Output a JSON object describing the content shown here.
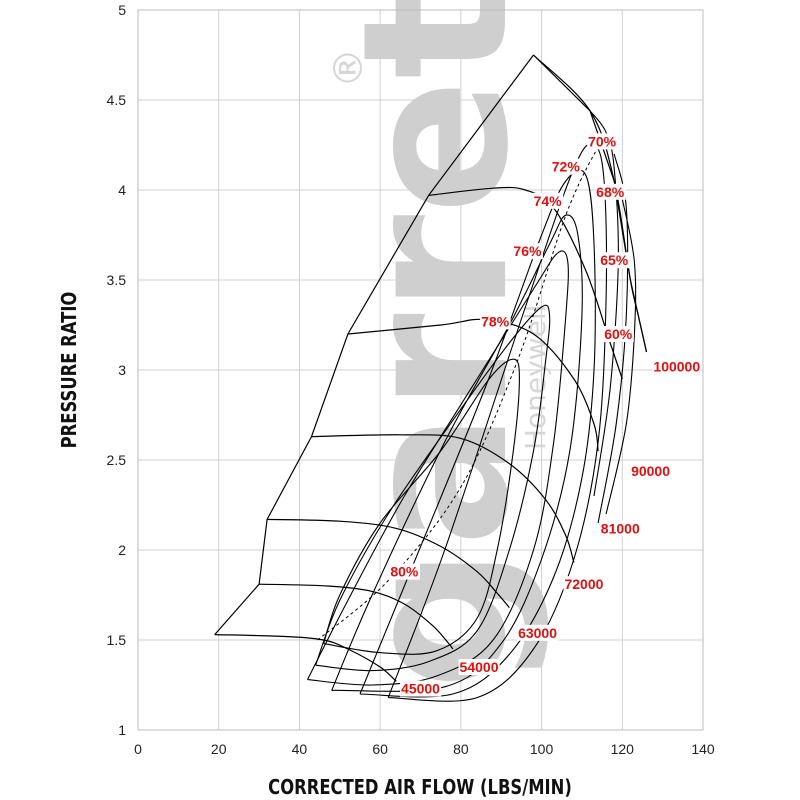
{
  "chart_data": {
    "type": "compressor_map",
    "xlabel": "CORRECTED AIR FLOW (LBS/MIN)",
    "ylabel": "PRESSURE RATIO",
    "xlim": [
      0,
      140
    ],
    "ylim": [
      1,
      5
    ],
    "xticks": [
      0,
      20,
      40,
      60,
      80,
      100,
      120,
      140
    ],
    "yticks": [
      1,
      1.5,
      2,
      2.5,
      3,
      3.5,
      4,
      4.5,
      5
    ],
    "grid": true,
    "watermark": {
      "text": "garrett",
      "registered": "®",
      "subtext": "Honeywell"
    },
    "surge_line": [
      [
        19,
        1.53
      ],
      [
        30,
        1.81
      ],
      [
        32,
        2.17
      ],
      [
        43,
        2.63
      ],
      [
        52,
        3.2
      ],
      [
        72,
        3.97
      ],
      [
        98,
        4.75
      ]
    ],
    "choke_line": [
      [
        98,
        4.75
      ],
      [
        112,
        4.44
      ],
      [
        118,
        4.05
      ],
      [
        122,
        3.5
      ],
      [
        124,
        3.3
      ],
      [
        126,
        3.1
      ]
    ],
    "speed_lines": [
      {
        "name": "45000",
        "points": [
          [
            19,
            1.53
          ],
          [
            36,
            1.52
          ],
          [
            46,
            1.5
          ],
          [
            52,
            1.45
          ],
          [
            60,
            1.35
          ],
          [
            64,
            1.27
          ]
        ]
      },
      {
        "name": "54000",
        "points": [
          [
            30,
            1.81
          ],
          [
            47,
            1.8
          ],
          [
            58,
            1.77
          ],
          [
            66,
            1.7
          ],
          [
            73,
            1.58
          ],
          [
            77,
            1.48
          ],
          [
            78,
            1.45
          ]
        ]
      },
      {
        "name": "63000",
        "points": [
          [
            32,
            2.17
          ],
          [
            50,
            2.16
          ],
          [
            64,
            2.12
          ],
          [
            75,
            2.02
          ],
          [
            84,
            1.88
          ],
          [
            89,
            1.76
          ],
          [
            92,
            1.68
          ]
        ]
      },
      {
        "name": "72000",
        "points": [
          [
            43,
            2.63
          ],
          [
            65,
            2.64
          ],
          [
            80,
            2.62
          ],
          [
            92,
            2.48
          ],
          [
            101,
            2.28
          ],
          [
            106,
            2.08
          ],
          [
            108,
            1.93
          ]
        ]
      },
      {
        "name": "81000",
        "points": [
          [
            52,
            3.2
          ],
          [
            75,
            3.25
          ],
          [
            86,
            3.28
          ],
          [
            98,
            3.2
          ],
          [
            108,
            2.95
          ],
          [
            113,
            2.7
          ],
          [
            114,
            2.55
          ]
        ]
      },
      {
        "name": "90000",
        "points": [
          [
            72,
            3.97
          ],
          [
            88,
            4.01
          ],
          [
            96,
            4.0
          ],
          [
            103,
            3.9
          ],
          [
            111,
            3.55
          ],
          [
            117,
            3.15
          ],
          [
            120,
            2.95
          ]
        ]
      },
      {
        "name": "100000",
        "points": [
          [
            98,
            4.75
          ],
          [
            112,
            4.44
          ],
          [
            118,
            4.05
          ],
          [
            122,
            3.5
          ],
          [
            124,
            3.3
          ],
          [
            126,
            3.1
          ]
        ]
      }
    ],
    "efficiency_islands": [
      {
        "label": "80%",
        "points": [
          [
            46,
            1.48
          ],
          [
            50,
            1.75
          ],
          [
            60,
            2.15
          ],
          [
            75,
            2.55
          ],
          [
            87,
            2.95
          ],
          [
            93,
            3.06
          ],
          [
            94.5,
            2.95
          ],
          [
            93,
            2.55
          ],
          [
            89,
            2.0
          ],
          [
            84,
            1.62
          ],
          [
            74,
            1.44
          ],
          [
            60,
            1.43
          ],
          [
            46,
            1.48
          ]
        ]
      },
      {
        "label": "78%",
        "points": [
          [
            44,
            1.36
          ],
          [
            50,
            1.72
          ],
          [
            62,
            2.2
          ],
          [
            78,
            2.72
          ],
          [
            92,
            3.15
          ],
          [
            100,
            3.35
          ],
          [
            102,
            3.3
          ],
          [
            101,
            3.05
          ],
          [
            98,
            2.55
          ],
          [
            92,
            2.0
          ],
          [
            84,
            1.55
          ],
          [
            72,
            1.38
          ],
          [
            58,
            1.33
          ],
          [
            44,
            1.36
          ]
        ]
      },
      {
        "label": "76%",
        "points": [
          [
            42,
            1.28
          ],
          [
            52,
            1.72
          ],
          [
            66,
            2.3
          ],
          [
            84,
            2.95
          ],
          [
            98,
            3.45
          ],
          [
            104,
            3.65
          ],
          [
            106.5,
            3.6
          ],
          [
            106,
            3.3
          ],
          [
            103,
            2.6
          ],
          [
            98,
            2.0
          ],
          [
            88,
            1.5
          ],
          [
            74,
            1.3
          ],
          [
            58,
            1.25
          ],
          [
            42,
            1.28
          ]
        ]
      },
      {
        "label": "74%",
        "points": [
          [
            48,
            1.22
          ],
          [
            58,
            1.75
          ],
          [
            76,
            2.6
          ],
          [
            92,
            3.25
          ],
          [
            102,
            3.7
          ],
          [
            106,
            3.86
          ],
          [
            109,
            3.75
          ],
          [
            110,
            3.3
          ],
          [
            107,
            2.55
          ],
          [
            100,
            1.95
          ],
          [
            90,
            1.48
          ],
          [
            76,
            1.24
          ],
          [
            48,
            1.22
          ]
        ]
      },
      {
        "label": "72%",
        "points": [
          [
            55,
            1.2
          ],
          [
            66,
            1.8
          ],
          [
            86,
            2.9
          ],
          [
            100,
            3.75
          ],
          [
            106,
            4.05
          ],
          [
            111,
            4.08
          ],
          [
            113,
            3.7
          ],
          [
            113,
            3.0
          ],
          [
            110,
            2.4
          ],
          [
            103,
            1.85
          ],
          [
            92,
            1.42
          ],
          [
            78,
            1.2
          ],
          [
            55,
            1.2
          ]
        ]
      },
      {
        "label": "70%",
        "points": [
          [
            62,
            1.18
          ],
          [
            76,
            2.0
          ],
          [
            96,
            3.35
          ],
          [
            108,
            4.12
          ],
          [
            113,
            4.25
          ],
          [
            115.5,
            4.05
          ],
          [
            116,
            3.4
          ],
          [
            114,
            2.6
          ],
          [
            108,
            1.95
          ],
          [
            98,
            1.45
          ],
          [
            84,
            1.18
          ],
          [
            62,
            1.18
          ]
        ]
      },
      {
        "label": "68%",
        "points": [
          [
            112,
            4.44
          ],
          [
            116,
            4.32
          ],
          [
            118,
            4.12
          ],
          [
            119,
            3.6
          ],
          [
            117,
            2.9
          ],
          [
            113,
            2.3
          ]
        ]
      },
      {
        "label": "65%",
        "points": [
          [
            118,
            4.2
          ],
          [
            121,
            3.9
          ],
          [
            121,
            3.3
          ],
          [
            118.5,
            2.7
          ],
          [
            114,
            2.15
          ]
        ]
      },
      {
        "label": "60%",
        "points": [
          [
            120,
            3.95
          ],
          [
            123,
            3.6
          ],
          [
            123,
            3.2
          ],
          [
            121,
            2.7
          ],
          [
            116,
            2.2
          ]
        ]
      }
    ],
    "max_efficiency_line": [
      [
        44.5,
        1.5
      ],
      [
        62,
        1.83
      ],
      [
        80,
        2.35
      ],
      [
        94,
        3.05
      ],
      [
        106,
        3.86
      ],
      [
        114,
        4.24
      ],
      [
        116,
        4.3
      ]
    ],
    "efficiency_labels": [
      {
        "text": "70%",
        "x": 115,
        "y": 4.27
      },
      {
        "text": "72%",
        "x": 106,
        "y": 4.13
      },
      {
        "text": "68%",
        "x": 117,
        "y": 3.99
      },
      {
        "text": "74%",
        "x": 101.5,
        "y": 3.94
      },
      {
        "text": "76%",
        "x": 96.5,
        "y": 3.66
      },
      {
        "text": "65%",
        "x": 118,
        "y": 3.61
      },
      {
        "text": "78%",
        "x": 88.5,
        "y": 3.27
      },
      {
        "text": "60%",
        "x": 119,
        "y": 3.2
      },
      {
        "text": "80%",
        "x": 66,
        "y": 1.88
      }
    ],
    "speed_labels": [
      {
        "text": "100000",
        "x": 133.5,
        "y": 3.02
      },
      {
        "text": "90000",
        "x": 127,
        "y": 2.44
      },
      {
        "text": "81000",
        "x": 119.5,
        "y": 2.12
      },
      {
        "text": "72000",
        "x": 110.5,
        "y": 1.81
      },
      {
        "text": "63000",
        "x": 99,
        "y": 1.54
      },
      {
        "text": "54000",
        "x": 84.5,
        "y": 1.35
      },
      {
        "text": "45000",
        "x": 70,
        "y": 1.23
      }
    ]
  }
}
